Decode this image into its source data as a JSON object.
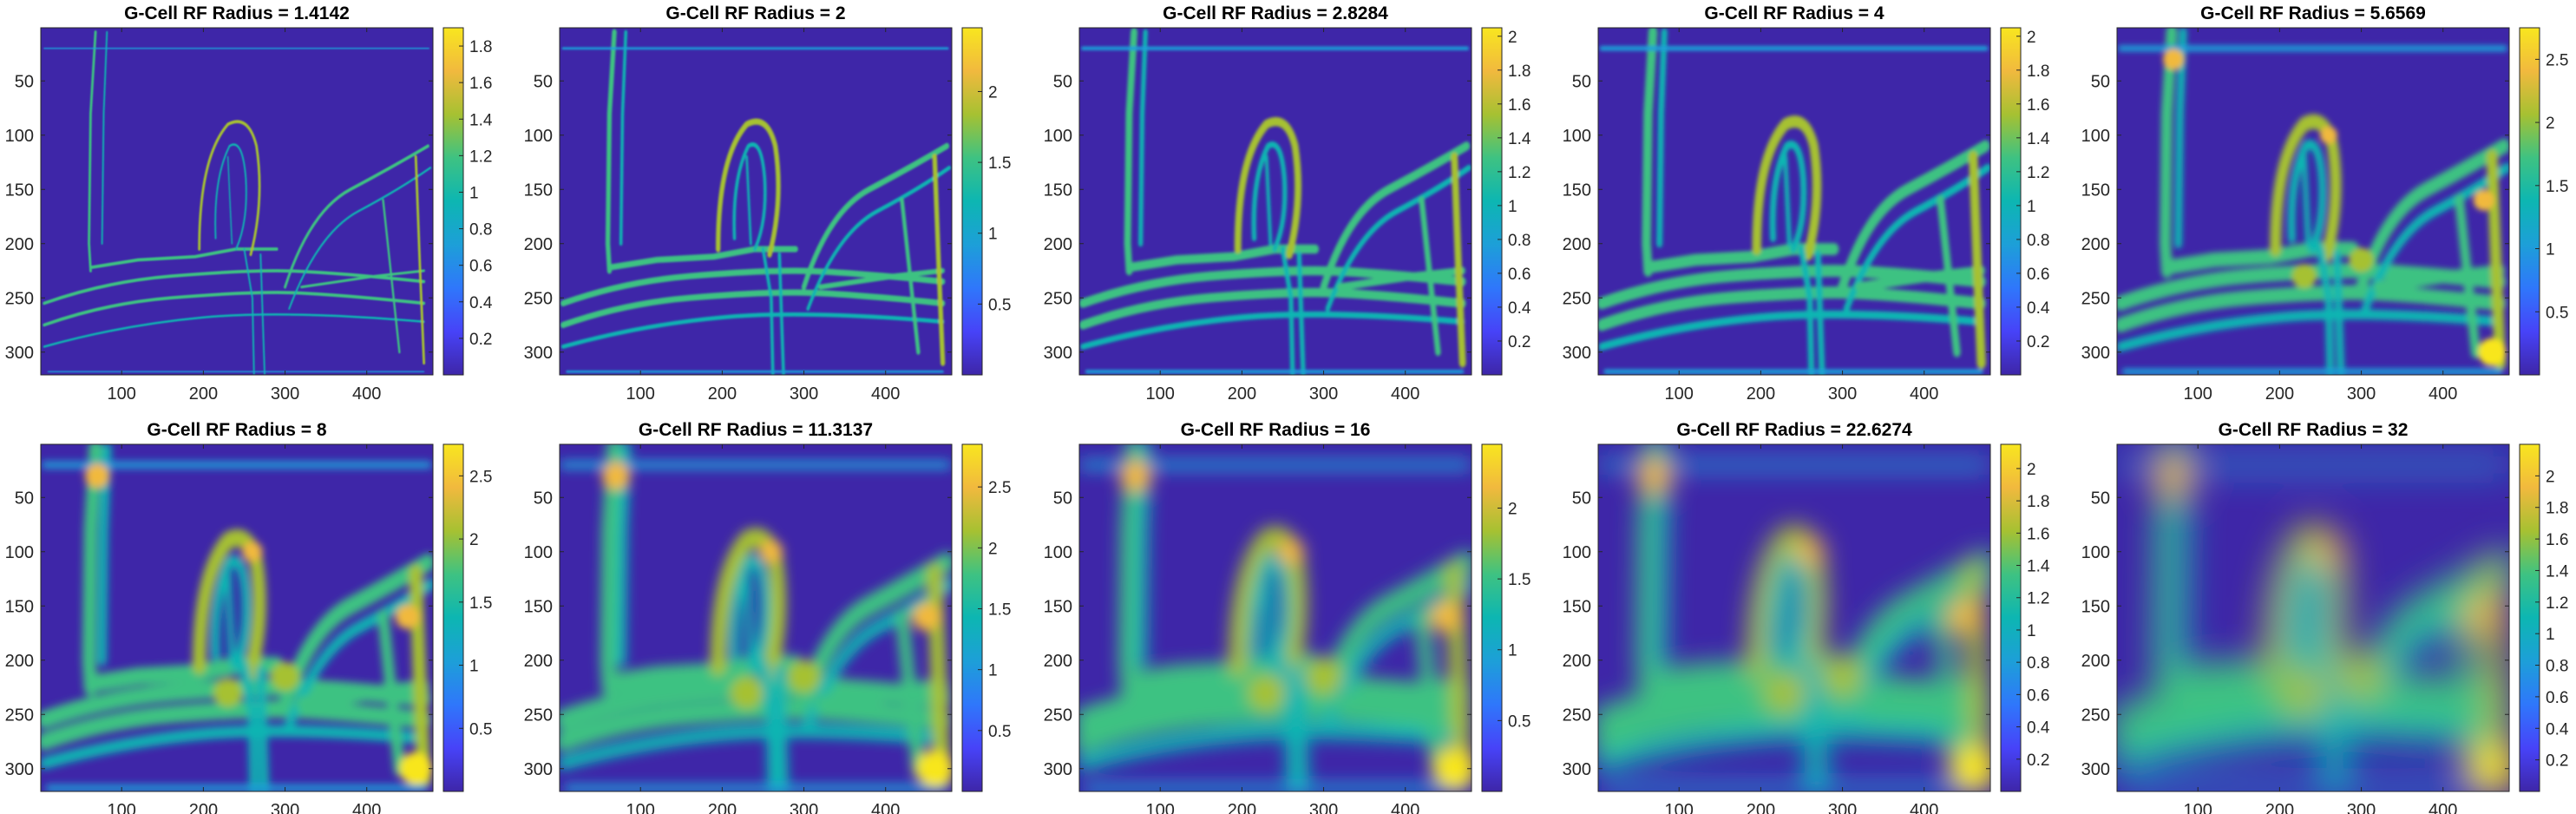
{
  "figure": {
    "colormap": "parula",
    "colormap_stops": [
      "#3e26a8",
      "#4743f8",
      "#2f77fb",
      "#1d9fd8",
      "#0db6b2",
      "#3ec282",
      "#a6c132",
      "#f1b93e",
      "#f8e61f"
    ],
    "background_color": "#ffffff"
  },
  "chart_data": [
    {
      "type": "heatmap",
      "title": "G-Cell RF Radius = 1.4142",
      "x_ticks": [
        100,
        200,
        300,
        400
      ],
      "y_ticks": [
        50,
        100,
        150,
        200,
        250,
        300
      ],
      "xlim": [
        1,
        481
      ],
      "ylim": [
        1,
        321
      ],
      "y_reversed": true,
      "colorbar_ticks": [
        "0.2",
        "0.4",
        "0.6",
        "0.8",
        "1",
        "1.2",
        "1.4",
        "1.6",
        "1.8"
      ],
      "clim": [
        0,
        1.9
      ]
    },
    {
      "type": "heatmap",
      "title": "G-Cell RF Radius = 2",
      "x_ticks": [
        100,
        200,
        300,
        400
      ],
      "y_ticks": [
        50,
        100,
        150,
        200,
        250,
        300
      ],
      "xlim": [
        1,
        481
      ],
      "ylim": [
        1,
        321
      ],
      "y_reversed": true,
      "colorbar_ticks": [
        "0.5",
        "1",
        "1.5",
        "2"
      ],
      "clim": [
        0,
        2.45
      ]
    },
    {
      "type": "heatmap",
      "title": "G-Cell RF Radius = 2.8284",
      "x_ticks": [
        100,
        200,
        300,
        400
      ],
      "y_ticks": [
        50,
        100,
        150,
        200,
        250,
        300
      ],
      "xlim": [
        1,
        481
      ],
      "ylim": [
        1,
        321
      ],
      "y_reversed": true,
      "colorbar_ticks": [
        "0.2",
        "0.4",
        "0.6",
        "0.8",
        "1",
        "1.2",
        "1.4",
        "1.6",
        "1.8",
        "2"
      ],
      "clim": [
        0,
        2.05
      ]
    },
    {
      "type": "heatmap",
      "title": "G-Cell RF Radius = 4",
      "x_ticks": [
        100,
        200,
        300,
        400
      ],
      "y_ticks": [
        50,
        100,
        150,
        200,
        250,
        300
      ],
      "xlim": [
        1,
        481
      ],
      "ylim": [
        1,
        321
      ],
      "y_reversed": true,
      "colorbar_ticks": [
        "0.2",
        "0.4",
        "0.6",
        "0.8",
        "1",
        "1.2",
        "1.4",
        "1.6",
        "1.8",
        "2"
      ],
      "clim": [
        0,
        2.05
      ]
    },
    {
      "type": "heatmap",
      "title": "G-Cell RF Radius = 5.6569",
      "x_ticks": [
        100,
        200,
        300,
        400
      ],
      "y_ticks": [
        50,
        100,
        150,
        200,
        250,
        300
      ],
      "xlim": [
        1,
        481
      ],
      "ylim": [
        1,
        321
      ],
      "y_reversed": true,
      "colorbar_ticks": [
        "0.5",
        "1",
        "1.5",
        "2",
        "2.5"
      ],
      "clim": [
        0,
        2.75
      ]
    },
    {
      "type": "heatmap",
      "title": "G-Cell RF Radius = 8",
      "x_ticks": [
        100,
        200,
        300,
        400
      ],
      "y_ticks": [
        50,
        100,
        150,
        200,
        250,
        300
      ],
      "xlim": [
        1,
        481
      ],
      "ylim": [
        1,
        321
      ],
      "y_reversed": true,
      "colorbar_ticks": [
        "0.5",
        "1",
        "1.5",
        "2",
        "2.5"
      ],
      "clim": [
        0,
        2.75
      ]
    },
    {
      "type": "heatmap",
      "title": "G-Cell RF Radius = 11.3137",
      "x_ticks": [
        100,
        200,
        300,
        400
      ],
      "y_ticks": [
        50,
        100,
        150,
        200,
        250,
        300
      ],
      "xlim": [
        1,
        481
      ],
      "ylim": [
        1,
        321
      ],
      "y_reversed": true,
      "colorbar_ticks": [
        "0.5",
        "1",
        "1.5",
        "2",
        "2.5"
      ],
      "clim": [
        0,
        2.85
      ]
    },
    {
      "type": "heatmap",
      "title": "G-Cell RF Radius = 16",
      "x_ticks": [
        100,
        200,
        300,
        400
      ],
      "y_ticks": [
        50,
        100,
        150,
        200,
        250,
        300
      ],
      "xlim": [
        1,
        481
      ],
      "ylim": [
        1,
        321
      ],
      "y_reversed": true,
      "colorbar_ticks": [
        "0.5",
        "1",
        "1.5",
        "2"
      ],
      "clim": [
        0,
        2.45
      ]
    },
    {
      "type": "heatmap",
      "title": "G-Cell RF Radius = 22.6274",
      "x_ticks": [
        100,
        200,
        300,
        400
      ],
      "y_ticks": [
        50,
        100,
        150,
        200,
        250,
        300
      ],
      "xlim": [
        1,
        481
      ],
      "ylim": [
        1,
        321
      ],
      "y_reversed": true,
      "colorbar_ticks": [
        "0.2",
        "0.4",
        "0.6",
        "0.8",
        "1",
        "1.2",
        "1.4",
        "1.6",
        "1.8",
        "2"
      ],
      "clim": [
        0,
        2.15
      ]
    },
    {
      "type": "heatmap",
      "title": "G-Cell RF Radius = 32",
      "x_ticks": [
        100,
        200,
        300,
        400
      ],
      "y_ticks": [
        50,
        100,
        150,
        200,
        250,
        300
      ],
      "xlim": [
        1,
        481
      ],
      "ylim": [
        1,
        321
      ],
      "y_reversed": true,
      "colorbar_ticks": [
        "0.2",
        "0.4",
        "0.6",
        "0.8",
        "1",
        "1.2",
        "1.4",
        "1.6",
        "1.8",
        "2"
      ],
      "clim": [
        0,
        2.2
      ]
    }
  ]
}
